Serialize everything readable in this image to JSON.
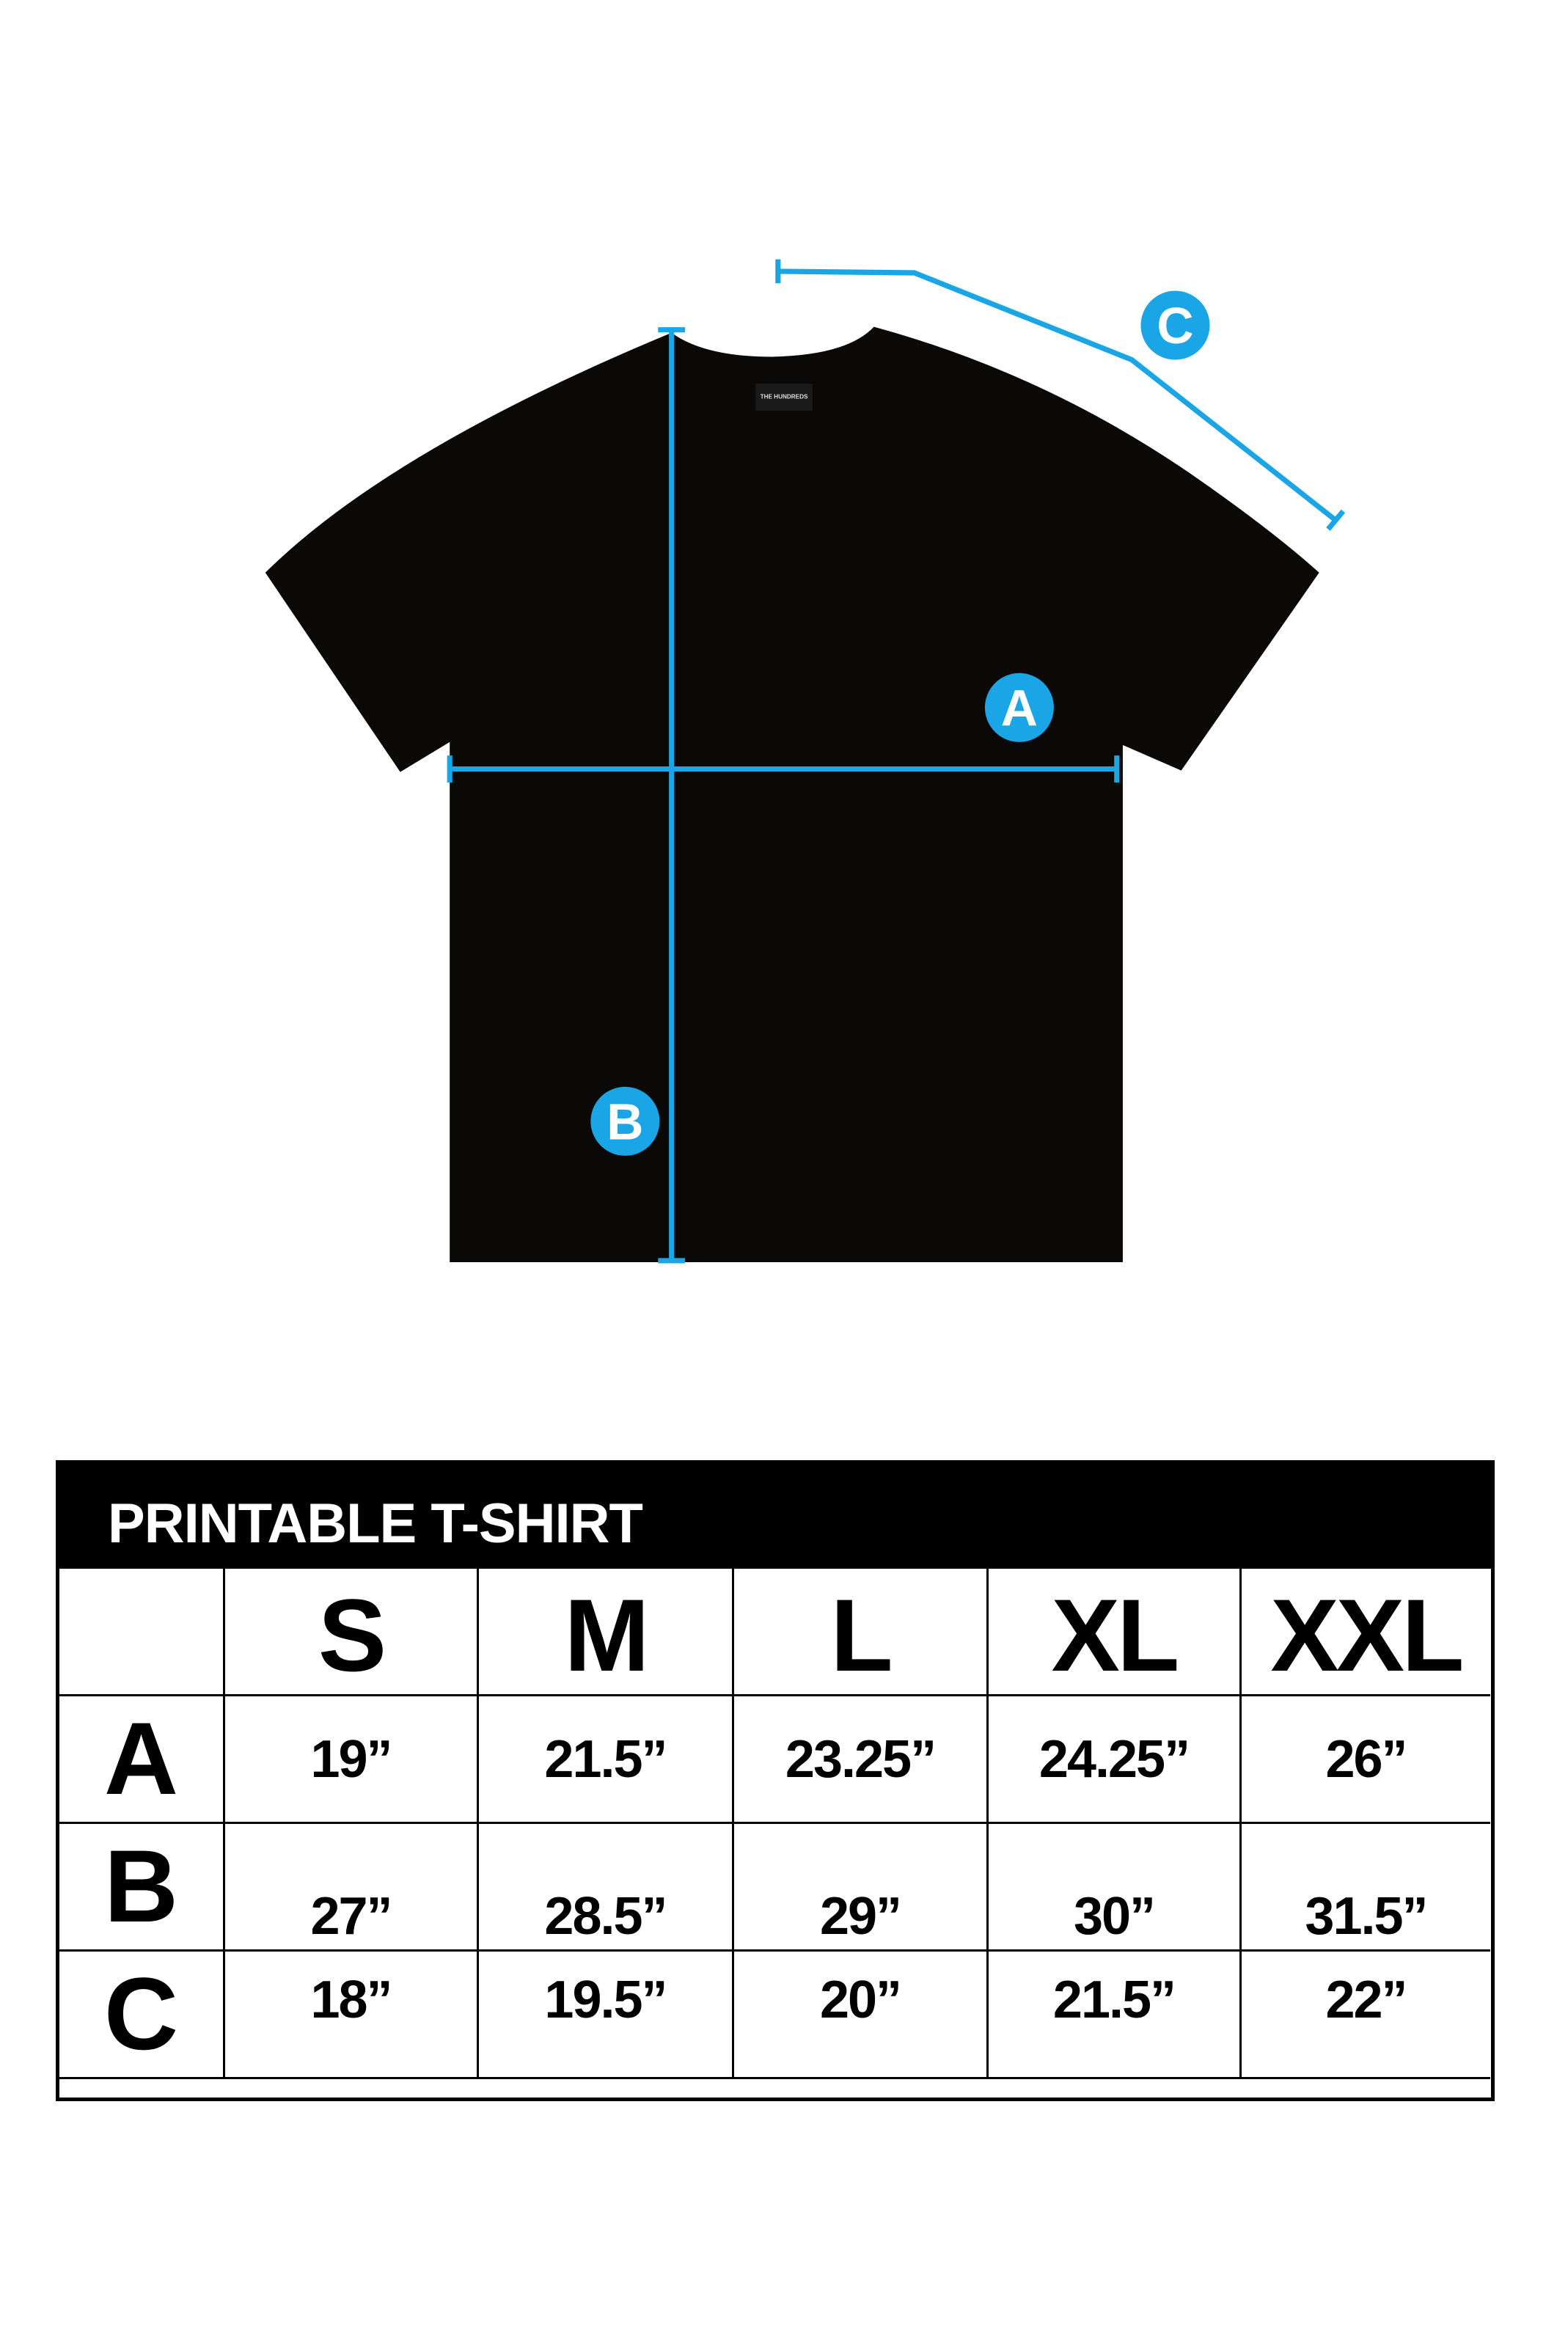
{
  "colors": {
    "accent": "#1aa5e6",
    "shirt": "#0a0908",
    "table_header_bg": "#000000"
  },
  "diagram": {
    "labels": {
      "a": "A",
      "b": "B",
      "c": "C"
    },
    "tag_text": "THE HUNDREDS"
  },
  "table": {
    "title": "PRINTABLE T-SHIRT",
    "columns": [
      "",
      "S",
      "M",
      "L",
      "XL",
      "XXL"
    ],
    "rows": [
      {
        "label": "A",
        "values": [
          "19”",
          "21.5”",
          "23.25”",
          "24.25”",
          "26”"
        ]
      },
      {
        "label": "B",
        "values": [
          "27”",
          "28.5”",
          "29”",
          "30”",
          "31.5”"
        ]
      },
      {
        "label": "C",
        "values": [
          "18”",
          "19.5”",
          "20”",
          "21.5”",
          "22”"
        ]
      }
    ]
  }
}
